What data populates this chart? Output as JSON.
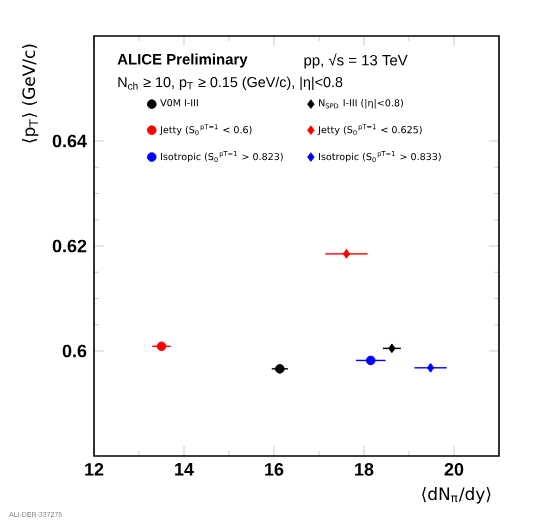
{
  "chart_data": {
    "type": "scatter",
    "title": "ALICE Preliminary",
    "subtitle": "pp, √s = 13 TeV",
    "xlabel": "⟨dN$_{π}$/dy⟩",
    "ylabel": "⟨p$_{T}$⟩ (GeV/c)",
    "annotations": [
      "N$_{ch}$ ≥ 10, p$_{T}$ ≥ 0.15 (GeV/c), |η|<0.8",
      "ALI-DER-337275"
    ],
    "xlim": [
      12,
      21
    ],
    "xticks": [
      12,
      14,
      16,
      18,
      20
    ],
    "ylim": [
      0.58,
      0.66
    ],
    "yticks": [
      0.6,
      0.62,
      0.64
    ],
    "legend": "top",
    "grid": false,
    "series": [
      {
        "name": "V0M I-III",
        "color": "#000000",
        "marker": "circle",
        "x": [
          16.13
        ],
        "values": [
          0.5966
        ],
        "xerrors": [
          0.18
        ],
        "errors": [
          0.0007
        ]
      },
      {
        "name": "N$_{SPD}$ I-III (|η|<0.8)",
        "color": "#000000",
        "marker": "diamond",
        "x": [
          18.62
        ],
        "values": [
          0.6005
        ],
        "xerrors": [
          0.2
        ],
        "errors": [
          0.0007
        ]
      },
      {
        "name": "Jetty (S$_{0}$$^{pT=1}$ < 0.6)",
        "color": "#ff0000",
        "marker": "circle",
        "x": [
          13.5
        ],
        "values": [
          0.6009
        ],
        "xerrors": [
          0.2
        ],
        "errors": [
          0.0007
        ]
      },
      {
        "name": "Jetty (S$_{0}$$^{pT=1}$ < 0.625)",
        "color": "#ff0000",
        "marker": "diamond",
        "x": [
          17.61
        ],
        "values": [
          0.6185
        ],
        "xerrors": [
          0.47
        ],
        "errors": [
          0.0008
        ]
      },
      {
        "name": "Isotropic (S$_{0}$$^{pT=1}$ > 0.823)",
        "color": "#0000ff",
        "marker": "circle",
        "x": [
          18.15
        ],
        "values": [
          0.5982
        ],
        "xerrors": [
          0.33
        ],
        "errors": [
          0.0007
        ]
      },
      {
        "name": "Isotropic (S$_{0}$$^{pT=1}$ > 0.833)",
        "color": "#0000ff",
        "marker": "diamond",
        "x": [
          19.48
        ],
        "values": [
          0.5968
        ],
        "xerrors": [
          0.36
        ],
        "errors": [
          0.0007
        ]
      }
    ]
  }
}
